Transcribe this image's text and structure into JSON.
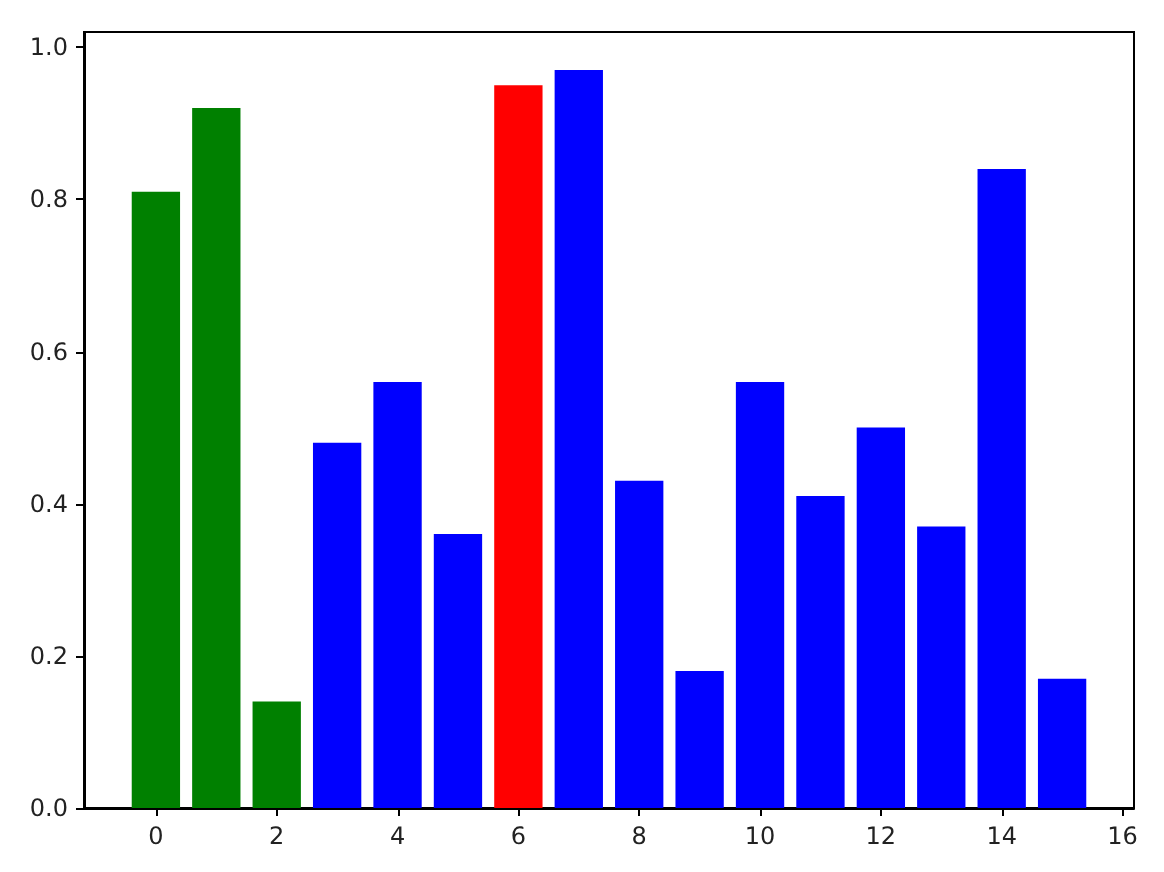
{
  "chart_data": {
    "type": "bar",
    "x": [
      0,
      1,
      2,
      3,
      4,
      5,
      6,
      7,
      8,
      9,
      10,
      11,
      12,
      13,
      14,
      15
    ],
    "values": [
      0.81,
      0.92,
      0.14,
      0.48,
      0.56,
      0.36,
      0.95,
      0.97,
      0.43,
      0.18,
      0.56,
      0.41,
      0.5,
      0.37,
      0.84,
      0.17
    ],
    "colors": [
      "#008000",
      "#008000",
      "#008000",
      "#0000ff",
      "#0000ff",
      "#0000ff",
      "#ff0000",
      "#0000ff",
      "#0000ff",
      "#0000ff",
      "#0000ff",
      "#0000ff",
      "#0000ff",
      "#0000ff",
      "#0000ff",
      "#0000ff"
    ],
    "xlim": [
      -1.19,
      16.19
    ],
    "xticks": [
      0,
      2,
      4,
      6,
      8,
      10,
      12,
      14,
      16
    ],
    "ylim": [
      0,
      1.02
    ],
    "yticks": [
      {
        "value": 0,
        "label": "0.0"
      },
      {
        "value": 0.2,
        "label": "0.2"
      },
      {
        "value": 0.4,
        "label": "0.4"
      },
      {
        "value": 0.6,
        "label": "0.6"
      },
      {
        "value": 0.8,
        "label": "0.8"
      },
      {
        "value": 1,
        "label": "1.0"
      }
    ],
    "grid": false
  }
}
